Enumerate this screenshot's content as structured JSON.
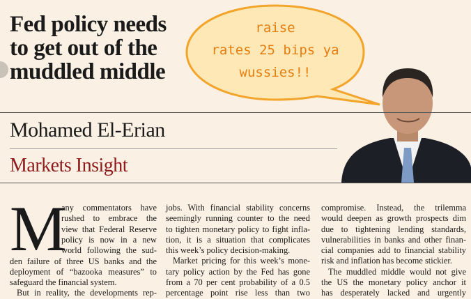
{
  "headline": [
    "Fed policy needs",
    "to get out of the",
    "muddled middle"
  ],
  "speech_bubble": [
    "raise",
    "rates 25 bips ya",
    "wussies!!"
  ],
  "author": "Mohamed El-Erian",
  "section": "Markets Insight",
  "drop_cap": "M",
  "columns": [
    [
      "any commentators have",
      "rushed to embrace the",
      "view that Federal Reserve",
      "policy is now in a new",
      "world following the sud-",
      "den failure of three US banks and the",
      "deployment of “bazooka measures” to",
      "safeguard the financial system.",
      "But in reality, the developments rep-"
    ],
    [
      "jobs. With financial stability concerns",
      "seemingly running counter to the need",
      "to tighten monetary policy to fight infla-",
      "tion, it is a situation that complicates",
      "this week’s policy decision-making.",
      "Market pricing for this week’s mone-",
      "tary policy action by the Fed has gone",
      "from a 70 per cent probability of a 0.5",
      "percentage point rise less than two"
    ],
    [
      "compromise. Instead, the trilemma",
      "would deepen as growth prospects dim",
      "due to tightening lending standards,",
      "vulnerabilities in banks and other finan-",
      "cial companies add to financial stability",
      "risk and inflation has become stickier.",
      "The muddled middle would not give",
      "the US the monetary policy anchor it",
      "has desperately lacked and urgently"
    ]
  ]
}
